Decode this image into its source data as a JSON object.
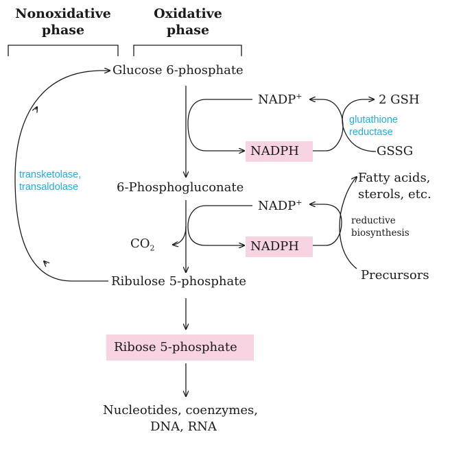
{
  "phases": {
    "nonoxidative": "Nonoxidative\nphase",
    "oxidative": "Oxidative\nphase"
  },
  "metabolites": {
    "glucose6p": "Glucose 6-phosphate",
    "phosphogluconate": "6-Phosphogluconate",
    "ribulose5p": "Ribulose 5-phosphate",
    "ribose5p": "Ribose 5-phosphate",
    "nucleotides_line1": "Nucleotides, coenzymes,",
    "nucleotides_line2": "DNA, RNA",
    "co2_base": "CO",
    "co2_sub": "2"
  },
  "cofactors": {
    "nadp_base": "NADP",
    "nadp_sup": "+",
    "nadph": "NADPH",
    "gsh": "2 GSH",
    "gssg": "GSSG",
    "fatty_line1": "Fatty acids,",
    "fatty_line2": "sterols, etc.",
    "precursors": "Precursors"
  },
  "enzymes": {
    "glutathione_line1": "glutathione",
    "glutathione_line2": "reductase",
    "transketolase_line1": "transketolase,",
    "transketolase_line2": "transaldolase"
  },
  "notes": {
    "reductive_line1": "reductive",
    "reductive_line2": "biosynthesis"
  },
  "colors": {
    "highlight": "#f7d3e3",
    "enzyme_text": "#25a9d6",
    "line": "#1a1a1a"
  }
}
